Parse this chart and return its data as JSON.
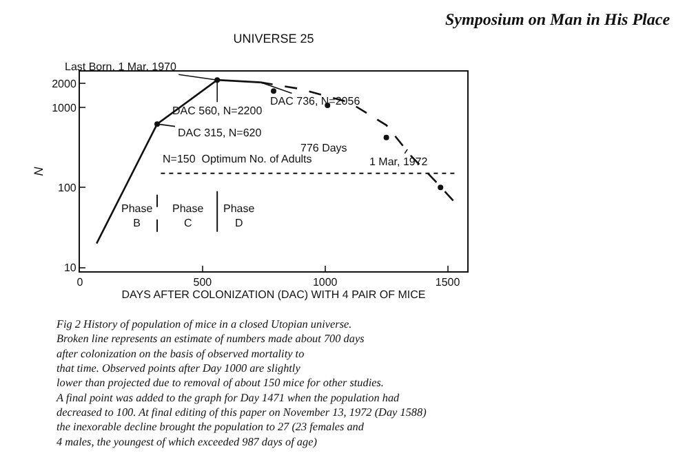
{
  "chart_data": {
    "type": "line",
    "title": "UNIVERSE 25",
    "xlabel": "DAYS AFTER COLONIZATION (DAC) WITH 4 PAIR OF MICE",
    "ylabel": "N",
    "log": "y",
    "xlim": [
      0,
      1580
    ],
    "xticks": [
      0,
      500,
      1000,
      1500
    ],
    "ylim": [
      9,
      2800
    ],
    "yticks": [
      10,
      100,
      1000,
      2000
    ],
    "series": [
      {
        "color": "#111111",
        "line_style": "solid",
        "marker": "none",
        "x": [
          68,
          315,
          560,
          736
        ],
        "values": [
          20,
          620,
          2200,
          2056
        ]
      },
      {
        "type": "line",
        "color": "#111111",
        "line_style": "dashed",
        "marker": "none",
        "x": [
          736,
          900,
          1100,
          1250,
          1350,
          1450,
          1530
        ],
        "values": [
          2056,
          1700,
          1150,
          600,
          250,
          120,
          65
        ]
      },
      {
        "type": "scatter",
        "color": "#111111",
        "marker": "circle",
        "x": [
          315,
          560,
          790,
          1010,
          1250,
          1471
        ],
        "values": [
          620,
          2200,
          1600,
          1060,
          420,
          100
        ]
      }
    ],
    "ref_lines": [
      {
        "axis": "y",
        "value": 150,
        "label": "N=150  Optimum No. of Adults",
        "line_style": "dotted",
        "color": "#111111"
      },
      {
        "axis": "x",
        "value": 315,
        "label": null,
        "line_style": "dashed",
        "color": "#111111"
      },
      {
        "axis": "x",
        "value": 560,
        "label": null,
        "line_style": "solid",
        "color": "#111111"
      }
    ],
    "annotations": [
      {
        "text": "Last Born, 1 Mar, 1970",
        "x": 560,
        "y": 2200
      },
      {
        "text": "DAC 736, N=2056",
        "x": 736,
        "y": 2056
      },
      {
        "text": "DAC 560, N=2200",
        "x": 560,
        "y": 2200
      },
      {
        "text": "DAC 315, N=620",
        "x": 315,
        "y": 620
      },
      {
        "text": "1 Mar, 1972",
        "x": 1336,
        "y": 300
      },
      "776 Days",
      "Phase\nB",
      "Phase\nC",
      "Phase\nD",
      "Symposium on Man in His Place",
      "Fig 2 History of population of mice in a closed Utopian universe.\nBroken line represents an estimate of numbers made about 700 days\nafter colonization on the basis of observed mortality to\nthat time. Observed points after Day 1000 are slightly\nlower than projected due to removal of about 150 mice for other studies.\nA final point was added to the graph for Day 1471 when the population had\ndecreased to 100. At final editing of this paper on November 13, 1972 (Day 1588)\nthe inexorable decline brought the population to 27 (23 females and\n4 males, the youngest of which exceeded 987 days of age)"
    ]
  }
}
